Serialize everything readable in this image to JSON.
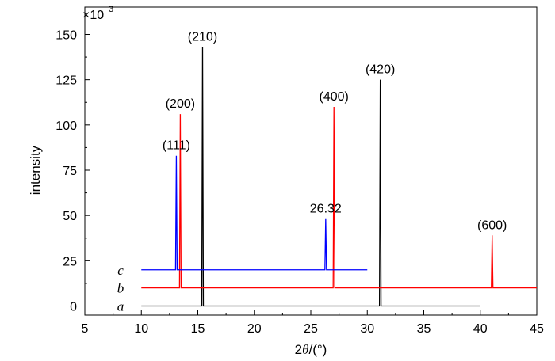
{
  "chart_data": {
    "type": "line",
    "xlabel_symbol": "θ",
    "xlabel_prefix": "2",
    "xlabel_unit": "/(°)",
    "ylabel": "intensity",
    "y_multiplier_base": "×10",
    "y_multiplier_exp": "3",
    "xlim": [
      5,
      45
    ],
    "ylim": [
      0,
      158
    ],
    "x_ticks": [
      5,
      10,
      15,
      20,
      25,
      30,
      35,
      40,
      45
    ],
    "y_ticks": [
      0,
      25,
      50,
      75,
      100,
      125,
      150
    ],
    "series": [
      {
        "name": "a",
        "color": "#000000",
        "baseline": 0,
        "x_range": [
          10,
          40
        ],
        "peaks": [
          {
            "x": 15.42,
            "y": 143,
            "label": "(210)"
          },
          {
            "x": 31.15,
            "y": 125,
            "label": "(420)"
          }
        ]
      },
      {
        "name": "b",
        "color": "#ff0000",
        "baseline": 10,
        "x_range": [
          10,
          45
        ],
        "peaks": [
          {
            "x": 13.45,
            "y": 106,
            "label": "(200)"
          },
          {
            "x": 27.05,
            "y": 110,
            "label": "(400)"
          },
          {
            "x": 41.05,
            "y": 39,
            "label": "(600)"
          }
        ]
      },
      {
        "name": "c",
        "color": "#0000ff",
        "baseline": 20,
        "x_range": [
          10,
          30
        ],
        "peaks": [
          {
            "x": 13.1,
            "y": 83,
            "label": "(111)"
          },
          {
            "x": 26.32,
            "y": 48,
            "label": "26.32"
          }
        ]
      }
    ]
  }
}
